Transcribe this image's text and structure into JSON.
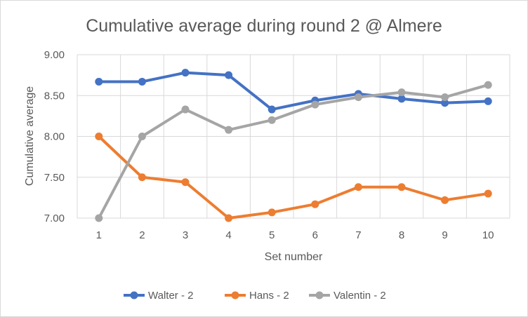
{
  "chart_data": {
    "type": "line",
    "title": "Cumulative average during round 2 @ Almere",
    "xlabel": "Set number",
    "ylabel": "Cumulative average",
    "x": [
      1,
      2,
      3,
      4,
      5,
      6,
      7,
      8,
      9,
      10
    ],
    "ylim": [
      7.0,
      9.0
    ],
    "yticks": [
      "7.00",
      "7.50",
      "8.00",
      "8.50",
      "9.00"
    ],
    "grid": true,
    "legend_position": "bottom",
    "series": [
      {
        "name": "Walter - 2",
        "color": "#4472c4",
        "values": [
          8.67,
          8.67,
          8.78,
          8.75,
          8.33,
          8.44,
          8.52,
          8.46,
          8.41,
          8.43
        ]
      },
      {
        "name": "Hans - 2",
        "color": "#ed7d31",
        "values": [
          8.0,
          7.5,
          7.44,
          7.0,
          7.07,
          7.17,
          7.38,
          7.38,
          7.22,
          7.3
        ]
      },
      {
        "name": "Valentin - 2",
        "color": "#a5a5a5",
        "values": [
          7.0,
          8.0,
          8.33,
          8.08,
          8.2,
          8.39,
          8.48,
          8.54,
          8.48,
          8.63
        ]
      }
    ]
  }
}
